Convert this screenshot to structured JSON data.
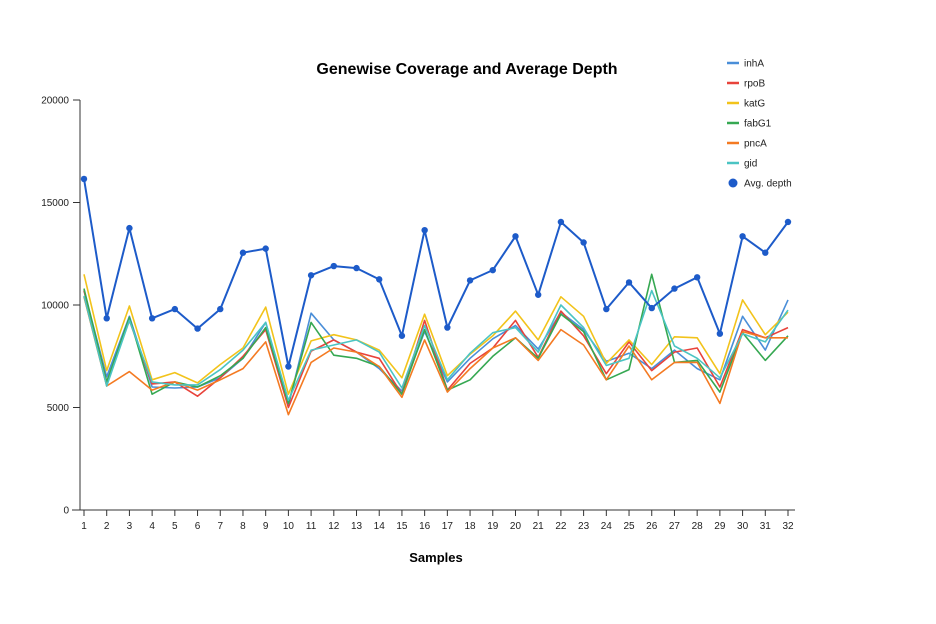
{
  "chart_data": {
    "type": "line",
    "title": "Genewise Coverage and Average Depth",
    "xlabel": "Samples",
    "ylabel": "",
    "categories": [
      "1",
      "2",
      "3",
      "4",
      "5",
      "6",
      "7",
      "8",
      "9",
      "10",
      "11",
      "12",
      "13",
      "14",
      "15",
      "16",
      "17",
      "18",
      "19",
      "20",
      "21",
      "22",
      "23",
      "24",
      "25",
      "26",
      "27",
      "28",
      "29",
      "30",
      "31",
      "32"
    ],
    "ylim": [
      0,
      20000
    ],
    "yticks": [
      0,
      5000,
      10000,
      15000,
      20000
    ],
    "ytick_labels": [
      "0",
      "5000",
      "10000",
      "15000",
      "20000"
    ],
    "grid": false,
    "legend_position": "top-right",
    "series": [
      {
        "name": "inhA",
        "color": "#4a8ed8",
        "marker": "none",
        "values": [
          10700,
          6500,
          9450,
          6000,
          5950,
          6000,
          6450,
          7400,
          9150,
          5100,
          9600,
          8300,
          7700,
          6900,
          5800,
          8700,
          6250,
          7400,
          8350,
          9000,
          7850,
          9650,
          8800,
          7250,
          7650,
          6900,
          7800,
          6900,
          6350,
          9450,
          7800,
          10250
        ]
      },
      {
        "name": "rpoB",
        "color": "#e8433b",
        "marker": "none",
        "values": [
          10700,
          6250,
          9250,
          6150,
          6250,
          5550,
          6450,
          7500,
          8800,
          5000,
          7750,
          8300,
          7700,
          7400,
          5650,
          9250,
          5850,
          7150,
          7900,
          9250,
          7450,
          9700,
          8500,
          6650,
          8200,
          6800,
          7700,
          7900,
          6000,
          8800,
          8400,
          8900
        ]
      },
      {
        "name": "katG",
        "color": "#f2c31b",
        "marker": "none",
        "values": [
          11500,
          6800,
          9950,
          6350,
          6700,
          6200,
          7100,
          7900,
          9900,
          5650,
          8250,
          8550,
          8300,
          7800,
          6450,
          9550,
          6550,
          7600,
          8500,
          9700,
          8300,
          10400,
          9450,
          7150,
          8300,
          7100,
          8450,
          8400,
          6650,
          10250,
          8550,
          9650
        ]
      },
      {
        "name": "fabG1",
        "color": "#36a852",
        "marker": "none",
        "values": [
          10800,
          6250,
          9400,
          5650,
          6250,
          6000,
          6550,
          7400,
          8900,
          5200,
          9150,
          7550,
          7400,
          7000,
          5650,
          8800,
          5850,
          6350,
          7500,
          8400,
          7400,
          9550,
          8700,
          6350,
          6850,
          11500,
          7200,
          7300,
          5750,
          8650,
          7300,
          8500
        ]
      },
      {
        "name": "pncA",
        "color": "#f47a22",
        "marker": "none",
        "values": [
          10400,
          6050,
          6750,
          5850,
          6250,
          5850,
          6350,
          6900,
          8200,
          4650,
          7200,
          7900,
          7700,
          7000,
          5500,
          8300,
          5750,
          6900,
          7900,
          8400,
          7300,
          8800,
          8050,
          6350,
          8000,
          6350,
          7200,
          7200,
          5200,
          8700,
          8400,
          8400
        ]
      },
      {
        "name": "gid",
        "color": "#4bc4c3",
        "marker": "none",
        "values": [
          10450,
          6050,
          9250,
          6250,
          6100,
          6100,
          6850,
          7800,
          9150,
          5350,
          7800,
          8050,
          8300,
          7700,
          5950,
          9000,
          6350,
          7650,
          8650,
          8900,
          7700,
          10000,
          8900,
          7050,
          7400,
          10700,
          8000,
          7400,
          6450,
          8600,
          8200,
          9750
        ]
      },
      {
        "name": "Avg. depth",
        "color": "#1d5bc9",
        "marker": "circle",
        "values": [
          16150,
          9350,
          13750,
          9350,
          9800,
          8850,
          9800,
          12550,
          12750,
          7000,
          11450,
          11900,
          11800,
          11250,
          8500,
          13650,
          8900,
          11200,
          11700,
          13350,
          10500,
          14050,
          13050,
          9800,
          11100,
          9850,
          10800,
          11350,
          8600,
          13350,
          12550,
          14050
        ]
      }
    ]
  }
}
